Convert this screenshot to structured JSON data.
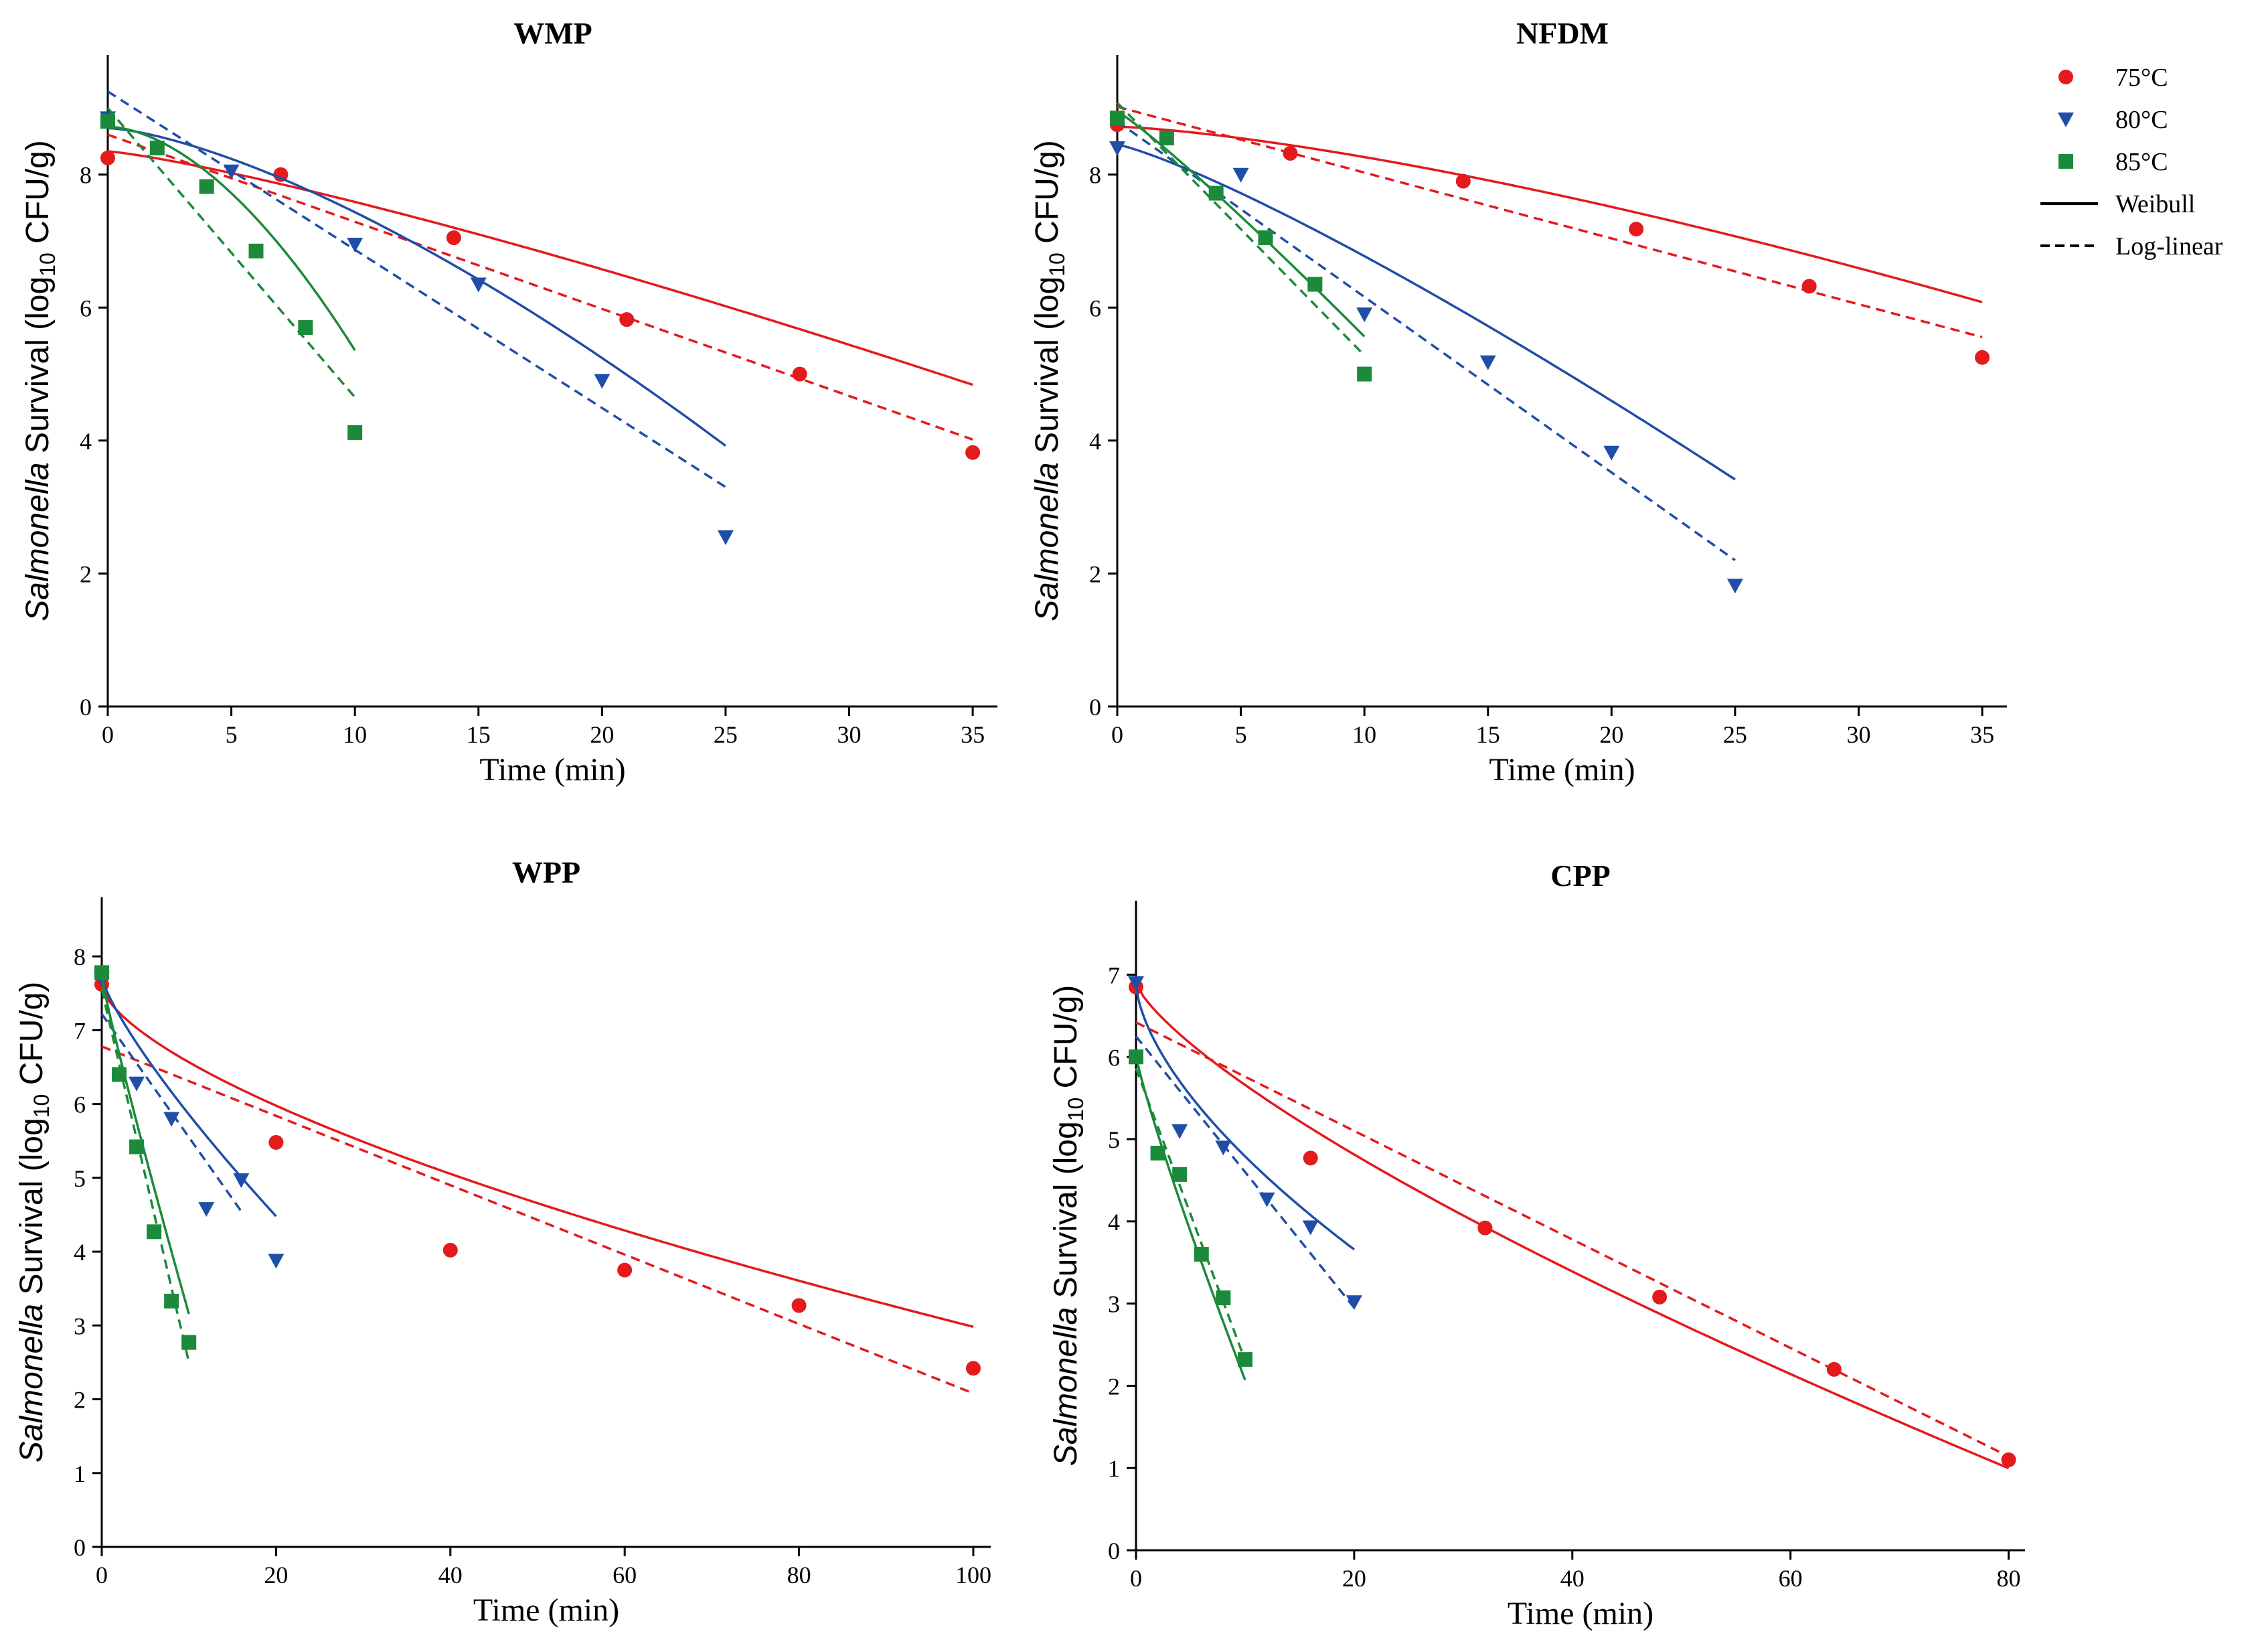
{
  "colors": {
    "series_75": "#e41a1c",
    "series_80": "#1f4ea8",
    "series_85": "#1b8a3a",
    "axis": "#000000"
  },
  "legend": {
    "entries": [
      {
        "label": "75°C",
        "marker": "circle",
        "color": "#e41a1c"
      },
      {
        "label": "80°C",
        "marker": "triangle-down",
        "color": "#1f4ea8"
      },
      {
        "label": "85°C",
        "marker": "square",
        "color": "#1b8a3a"
      },
      {
        "label": "Weibull",
        "marker": "solid-line",
        "color": "#000000"
      },
      {
        "label": "Log-linear",
        "marker": "dashed-line",
        "color": "#000000"
      }
    ]
  },
  "y_label": {
    "italic": "Salmonella",
    "text_before_sub": " Survival (log",
    "subscript": "10",
    "text_after_sub": " CFU/g)"
  },
  "chart_data": [
    {
      "type": "scatter",
      "title": "WMP",
      "xlabel": "Time (min)",
      "ylabel": "Salmonella Survival (log10 CFU/g)",
      "xlim": [
        0,
        36
      ],
      "ylim": [
        0,
        9.8
      ],
      "xticks": [
        0,
        5,
        10,
        15,
        20,
        25,
        30,
        35
      ],
      "yticks": [
        0,
        2,
        4,
        6,
        8
      ],
      "series": [
        {
          "name": "75°C",
          "key": "s75",
          "x": [
            0,
            7,
            14,
            21,
            28,
            35
          ],
          "y": [
            8.25,
            8.0,
            7.05,
            5.82,
            5.0,
            3.82
          ],
          "weibull": {
            "y0": 8.35,
            "delta": 12.5,
            "p": 1.22,
            "xmax": 35
          },
          "loglinear": {
            "y0": 8.6,
            "slope": -0.131,
            "xmax": 35
          }
        },
        {
          "name": "80°C",
          "key": "s80",
          "x": [
            0,
            5,
            10,
            15,
            20,
            25
          ],
          "y": [
            8.85,
            8.05,
            6.95,
            6.35,
            4.9,
            2.55
          ],
          "weibull": {
            "y0": 8.7,
            "delta": 8.5,
            "p": 1.45,
            "xmax": 25
          },
          "loglinear": {
            "y0": 9.25,
            "slope": -0.238,
            "xmax": 25
          }
        },
        {
          "name": "85°C",
          "key": "s85",
          "x": [
            0,
            2,
            4,
            6,
            8,
            10
          ],
          "y": [
            8.8,
            8.4,
            7.82,
            6.85,
            5.7,
            4.12
          ],
          "weibull": {
            "y0": 8.72,
            "delta": 5.0,
            "p": 1.75,
            "xmax": 10
          },
          "loglinear": {
            "y0": 9.0,
            "slope": -0.435,
            "xmax": 10
          }
        }
      ]
    },
    {
      "type": "scatter",
      "title": "NFDM",
      "xlabel": "Time (min)",
      "ylabel": "Salmonella Survival (log10 CFU/g)",
      "xlim": [
        0,
        36
      ],
      "ylim": [
        0,
        9.8
      ],
      "xticks": [
        0,
        5,
        10,
        15,
        20,
        25,
        30,
        35
      ],
      "yticks": [
        0,
        2,
        4,
        6,
        8
      ],
      "series": [
        {
          "name": "75°C",
          "key": "s75",
          "x": [
            0,
            7,
            14,
            21,
            28,
            35
          ],
          "y": [
            8.75,
            8.32,
            7.9,
            7.18,
            6.32,
            5.25
          ],
          "weibull": {
            "y0": 8.72,
            "delta": 17.5,
            "p": 1.4,
            "xmax": 35
          },
          "loglinear": {
            "y0": 9.02,
            "slope": -0.099,
            "xmax": 35
          }
        },
        {
          "name": "80°C",
          "key": "s80",
          "x": [
            0,
            5,
            10,
            15,
            20,
            25
          ],
          "y": [
            8.4,
            8.0,
            5.9,
            5.18,
            3.82,
            1.82
          ],
          "weibull": {
            "y0": 8.45,
            "delta": 6.5,
            "p": 1.2,
            "xmax": 25
          },
          "loglinear": {
            "y0": 8.8,
            "slope": -0.264,
            "xmax": 25
          }
        },
        {
          "name": "85°C",
          "key": "s85",
          "x": [
            0,
            2,
            4,
            6,
            8,
            10
          ],
          "y": [
            8.85,
            8.55,
            7.72,
            7.05,
            6.35,
            5.0
          ],
          "weibull": {
            "y0": 8.95,
            "delta": 3.3,
            "p": 1.1,
            "xmax": 10
          },
          "loglinear": {
            "y0": 9.08,
            "slope": -0.38,
            "xmax": 10
          }
        }
      ]
    },
    {
      "type": "scatter",
      "title": "WPP",
      "xlabel": "Time (min)",
      "ylabel": "Salmonella Survival (log10 CFU/g)",
      "xlim": [
        0,
        102
      ],
      "ylim": [
        0,
        8.8
      ],
      "xticks": [
        0,
        20,
        40,
        60,
        80,
        100
      ],
      "yticks": [
        0,
        1,
        2,
        3,
        4,
        5,
        6,
        7,
        8
      ],
      "series": [
        {
          "name": "75°C",
          "key": "s75",
          "x": [
            0,
            20,
            40,
            60,
            80,
            100
          ],
          "y": [
            7.62,
            5.48,
            4.02,
            3.75,
            3.27,
            2.42
          ],
          "weibull": {
            "y0": 7.6,
            "delta": 9.5,
            "p": 0.65,
            "xmax": 100
          },
          "loglinear": {
            "y0": 6.78,
            "slope": -0.047,
            "xmax": 100
          }
        },
        {
          "name": "80°C",
          "key": "s80",
          "x": [
            0,
            4,
            8,
            12,
            16,
            20
          ],
          "y": [
            7.7,
            6.28,
            5.8,
            4.58,
            4.97,
            3.88
          ],
          "weibull": {
            "y0": 7.72,
            "delta": 4.6,
            "p": 0.8,
            "xmax": 20
          },
          "loglinear": {
            "y0": 7.22,
            "slope": -0.167,
            "xmax": 16
          }
        },
        {
          "name": "85°C",
          "key": "s85",
          "x": [
            0,
            2,
            4,
            6,
            8,
            10
          ],
          "y": [
            7.78,
            6.4,
            5.42,
            4.27,
            3.33,
            2.77
          ],
          "weibull": {
            "y0": 7.72,
            "delta": 1.92,
            "p": 0.92,
            "xmax": 10
          },
          "loglinear": {
            "y0": 7.55,
            "slope": -0.505,
            "xmax": 10
          }
        }
      ]
    },
    {
      "type": "scatter",
      "title": "CPP",
      "xlabel": "Time (min)",
      "ylabel": "Salmonella Survival (log10 CFU/g)",
      "xlim": [
        0,
        81.5
      ],
      "ylim": [
        0,
        7.9
      ],
      "xticks": [
        0,
        20,
        40,
        60,
        80
      ],
      "yticks": [
        0,
        1,
        2,
        3,
        4,
        5,
        6,
        7
      ],
      "series": [
        {
          "name": "75°C",
          "key": "s75",
          "x": [
            0,
            16,
            32,
            48,
            64,
            80
          ],
          "y": [
            6.85,
            4.77,
            3.92,
            3.08,
            2.2,
            1.1
          ],
          "weibull": {
            "y0": 6.9,
            "delta": 7.5,
            "p": 0.75,
            "xmax": 80
          },
          "loglinear": {
            "y0": 6.42,
            "slope": -0.066,
            "xmax": 80
          }
        },
        {
          "name": "80°C",
          "key": "s80",
          "x": [
            0,
            4,
            8,
            12,
            16,
            20
          ],
          "y": [
            6.9,
            5.1,
            4.9,
            4.27,
            3.93,
            3.02
          ],
          "weibull": {
            "y0": 6.9,
            "delta": 3.0,
            "p": 0.62,
            "xmax": 20
          },
          "loglinear": {
            "y0": 6.25,
            "slope": -0.165,
            "xmax": 20
          }
        },
        {
          "name": "85°C",
          "key": "s85",
          "x": [
            0,
            2,
            4,
            6,
            8,
            10
          ],
          "y": [
            6.0,
            4.83,
            4.57,
            3.6,
            3.07,
            2.32
          ],
          "weibull": {
            "y0": 6.02,
            "delta": 2.1,
            "p": 0.88,
            "xmax": 10
          },
          "loglinear": {
            "y0": 5.86,
            "slope": -0.355,
            "xmax": 10
          }
        }
      ]
    }
  ]
}
